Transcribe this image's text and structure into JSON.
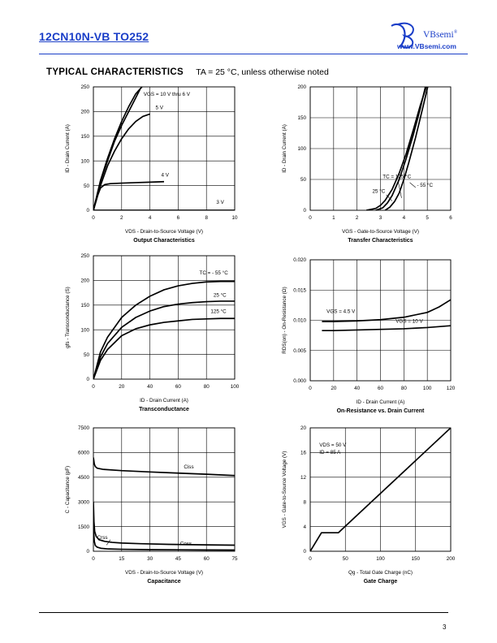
{
  "header": {
    "part_title": "12CN10N-VB TO252",
    "brand": "VBsemi",
    "brand_mark": "®",
    "website": "www.VBsemi.com"
  },
  "section": {
    "title": "TYPICAL CHARACTERISTICS",
    "condition": "TA = 25 °C, unless otherwise noted"
  },
  "footer": {
    "page_number": "3"
  },
  "chart_data": [
    {
      "id": "output",
      "type": "line",
      "title": "Output Characteristics",
      "xlabel": "VDS - Drain-to-Source Voltage (V)",
      "ylabel": "ID - Drain Current (A)",
      "xlim": [
        0,
        10
      ],
      "ylim": [
        0,
        250
      ],
      "xticks": [
        "0",
        "2",
        "4",
        "6",
        "8",
        "10"
      ],
      "yticks": [
        "0",
        "50",
        "100",
        "150",
        "200",
        "250"
      ],
      "series": [
        {
          "name": "VGS = 10 V thru 6 V",
          "x": [
            0,
            0.5,
            1,
            1.5,
            2,
            2.5,
            3,
            3.5
          ],
          "y": [
            0,
            60,
            105,
            145,
            180,
            210,
            236,
            252
          ]
        },
        {
          "name": "VGS = 10 V thru 6 V (b)",
          "x": [
            0,
            0.5,
            1,
            1.5,
            2,
            2.5,
            3,
            3.3
          ],
          "y": [
            0,
            58,
            100,
            140,
            172,
            200,
            228,
            245
          ]
        },
        {
          "name": "5 V",
          "x": [
            0,
            0.5,
            1,
            1.5,
            2,
            2.5,
            3,
            3.5,
            4
          ],
          "y": [
            0,
            50,
            90,
            120,
            145,
            165,
            180,
            190,
            195
          ]
        },
        {
          "name": "4 V",
          "x": [
            0,
            0.3,
            0.5,
            0.8,
            1.2,
            2,
            3,
            4,
            5
          ],
          "y": [
            0,
            30,
            45,
            52,
            54,
            55,
            56,
            57,
            58
          ]
        },
        {
          "name": "3 V",
          "x": [
            0,
            10
          ],
          "y": [
            0,
            0
          ]
        }
      ],
      "annotations": [
        "VGS = 10 V thru 6 V",
        "5 V",
        "4 V",
        "3 V"
      ]
    },
    {
      "id": "transfer",
      "type": "line",
      "title": "Transfer Characteristics",
      "xlabel": "VGS - Gate-to-Source Voltage (V)",
      "ylabel": "ID - Drain Current (A)",
      "xlim": [
        0,
        6
      ],
      "ylim": [
        0,
        200
      ],
      "xticks": [
        "0",
        "1",
        "2",
        "3",
        "4",
        "5",
        "6"
      ],
      "yticks": [
        "0",
        "50",
        "100",
        "150",
        "200"
      ],
      "series": [
        {
          "name": "TC = 125 °C",
          "x": [
            2.4,
            2.8,
            3.0,
            3.2,
            3.5,
            3.8,
            4.1,
            4.4,
            4.7,
            5.0
          ],
          "y": [
            0,
            3,
            8,
            16,
            34,
            60,
            92,
            130,
            170,
            205
          ]
        },
        {
          "name": "25 °C",
          "x": [
            2.8,
            3.1,
            3.3,
            3.5,
            3.8,
            4.1,
            4.4,
            4.7,
            4.95
          ],
          "y": [
            0,
            4,
            12,
            24,
            50,
            84,
            122,
            165,
            205
          ]
        },
        {
          "name": "- 55 °C",
          "x": [
            3.2,
            3.4,
            3.6,
            3.8,
            4.0,
            4.2,
            4.5,
            4.8,
            5.05
          ],
          "y": [
            0,
            5,
            14,
            28,
            50,
            76,
            118,
            165,
            205
          ]
        }
      ],
      "annotations": [
        "TC = 125 °C",
        "25 °C",
        "- 55 °C"
      ]
    },
    {
      "id": "transconductance",
      "type": "line",
      "title": "Transconductance",
      "xlabel": "ID - Drain Current (A)",
      "ylabel": "gfs - Transconductance (S)",
      "xlim": [
        0,
        100
      ],
      "ylim": [
        0,
        250
      ],
      "xticks": [
        "0",
        "20",
        "40",
        "60",
        "80",
        "100"
      ],
      "yticks": [
        "0",
        "50",
        "100",
        "150",
        "200",
        "250"
      ],
      "series": [
        {
          "name": "TC = - 55 °C",
          "x": [
            0,
            5,
            10,
            20,
            30,
            40,
            50,
            60,
            70,
            80,
            90,
            100
          ],
          "y": [
            0,
            55,
            85,
            125,
            150,
            168,
            181,
            189,
            194,
            197,
            198,
            198
          ]
        },
        {
          "name": "25 °C",
          "x": [
            0,
            5,
            10,
            20,
            30,
            40,
            50,
            60,
            70,
            80,
            90,
            100
          ],
          "y": [
            0,
            45,
            72,
            105,
            125,
            138,
            147,
            152,
            155,
            157,
            158,
            158
          ]
        },
        {
          "name": "125 °C",
          "x": [
            0,
            5,
            10,
            20,
            30,
            40,
            50,
            60,
            70,
            80,
            90,
            100
          ],
          "y": [
            0,
            38,
            60,
            88,
            102,
            110,
            115,
            118,
            121,
            122,
            123,
            123
          ]
        }
      ],
      "annotations": [
        "TC = - 55 °C",
        "25 °C",
        "125 °C"
      ]
    },
    {
      "id": "rdson",
      "type": "line",
      "title": "On-Resistance vs. Drain Current",
      "xlabel": "ID - Drain Current (A)",
      "ylabel": "RDS(on) - On-Resistance (Ω)",
      "xlim": [
        0,
        120
      ],
      "ylim": [
        0,
        0.02
      ],
      "xticks": [
        "0",
        "20",
        "40",
        "60",
        "80",
        "100",
        "120"
      ],
      "yticks": [
        "0.000",
        "0.005",
        "0.010",
        "0.015",
        "0.020"
      ],
      "series": [
        {
          "name": "VGS = 4.5 V",
          "x": [
            10,
            20,
            40,
            60,
            80,
            100,
            110,
            120
          ],
          "y": [
            0.0098,
            0.0098,
            0.0099,
            0.0101,
            0.0105,
            0.0113,
            0.0122,
            0.0134
          ]
        },
        {
          "name": "VGS = 10 V",
          "x": [
            10,
            20,
            40,
            60,
            80,
            100,
            120
          ],
          "y": [
            0.0083,
            0.0083,
            0.0084,
            0.0085,
            0.0086,
            0.0088,
            0.0091
          ]
        }
      ],
      "annotations": [
        "VGS = 4.5 V",
        "VGS = 10 V"
      ]
    },
    {
      "id": "capacitance",
      "type": "line",
      "title": "Capacitance",
      "xlabel": "VDS - Drain-to-Source Voltage (V)",
      "ylabel": "C - Capacitance (pF)",
      "xlim": [
        0,
        75
      ],
      "ylim": [
        0,
        7500
      ],
      "xticks": [
        "0",
        "15",
        "30",
        "45",
        "60",
        "75"
      ],
      "yticks": [
        "0",
        "1500",
        "3000",
        "4500",
        "6000",
        "7500"
      ],
      "series": [
        {
          "name": "Ciss",
          "x": [
            0,
            0.5,
            1,
            2,
            5,
            15,
            30,
            45,
            60,
            75
          ],
          "y": [
            5700,
            5300,
            5150,
            5050,
            4980,
            4900,
            4820,
            4750,
            4680,
            4600
          ]
        },
        {
          "name": "Coss",
          "x": [
            0,
            0.3,
            0.7,
            1.5,
            3,
            6,
            10,
            15,
            25,
            40,
            60,
            75
          ],
          "y": [
            3000,
            1800,
            1200,
            900,
            700,
            600,
            540,
            500,
            460,
            420,
            390,
            370
          ]
        },
        {
          "name": "Crss",
          "x": [
            0,
            0.5,
            1,
            2,
            4,
            8,
            15,
            30,
            45,
            60,
            75
          ],
          "y": [
            1400,
            600,
            350,
            250,
            180,
            140,
            120,
            100,
            90,
            80,
            75
          ]
        }
      ],
      "annotations": [
        "Ciss",
        "Crss",
        "Coss"
      ]
    },
    {
      "id": "gatecharge",
      "type": "line",
      "title": "Gate Charge",
      "xlabel": "Qg - Total Gate Charge (nC)",
      "ylabel": "VGS - Gate-to-Source Voltage (V)",
      "xlim": [
        0,
        200
      ],
      "ylim": [
        0,
        20
      ],
      "xticks": [
        "0",
        "50",
        "100",
        "150",
        "200"
      ],
      "yticks": [
        "0",
        "4",
        "8",
        "12",
        "16",
        "20"
      ],
      "series": [
        {
          "name": "VGS",
          "x": [
            0,
            16,
            40,
            200
          ],
          "y": [
            0,
            3,
            3,
            20
          ]
        }
      ],
      "annotations": [
        "VDS = 50 V",
        "ID = 85 A"
      ]
    }
  ]
}
